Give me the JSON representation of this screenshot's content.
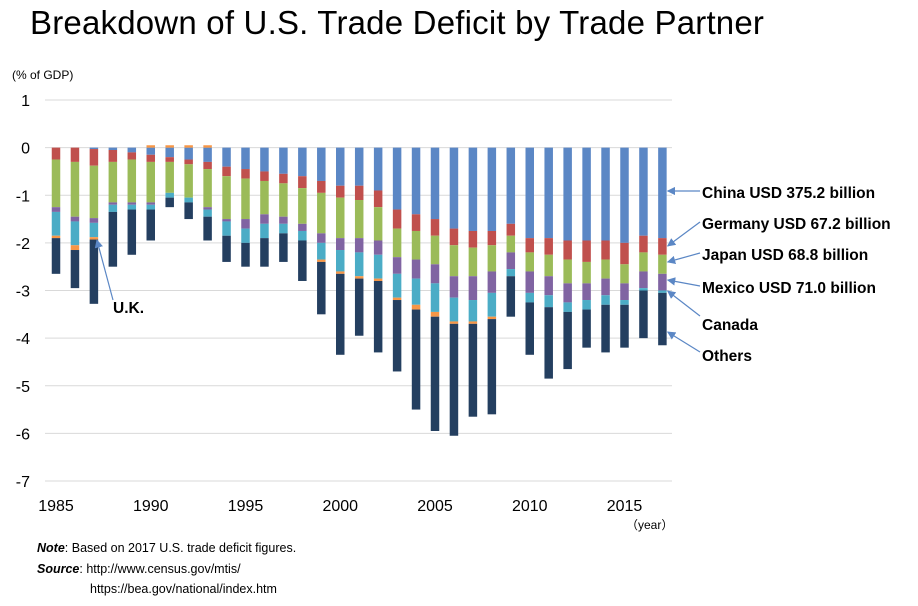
{
  "title": "Breakdown of U.S. Trade Deficit by Trade Partner",
  "unit_label": "(% of GDP)",
  "year_label": "（year）",
  "notes": {
    "note_label": "Note",
    "note_text": ": Based on 2017 U.S. trade deficit figures.",
    "source_label": "Source",
    "source_text": ": http://www.census.gov/mtis/",
    "source_text2": "https://bea.gov/national/index.htm"
  },
  "colors": {
    "China": "#5b87c5",
    "Germany": "#c0504d",
    "Japan": "#9bbb59",
    "Mexico": "#8064a2",
    "Canada": "#4bacc6",
    "UK": "#f79646",
    "Others": "#243f60",
    "arrow": "#5b87c5",
    "grid": "#d9d9d9"
  },
  "chart_data": {
    "type": "bar",
    "stacked": true,
    "x": [
      1985,
      1986,
      1987,
      1988,
      1989,
      1990,
      1991,
      1992,
      1993,
      1994,
      1995,
      1996,
      1997,
      1998,
      1999,
      2000,
      2001,
      2002,
      2003,
      2004,
      2005,
      2006,
      2007,
      2008,
      2009,
      2010,
      2011,
      2012,
      2013,
      2014,
      2015,
      2016,
      2017
    ],
    "xticks": [
      1985,
      1990,
      1995,
      2000,
      2005,
      2010,
      2015
    ],
    "yticks": [
      1,
      0,
      -1,
      -2,
      -3,
      -4,
      -5,
      -6,
      -7
    ],
    "ylim": [
      -7,
      1
    ],
    "series": [
      {
        "name": "China",
        "values": [
          0,
          0,
          -0.03,
          -0.05,
          -0.1,
          -0.15,
          -0.2,
          -0.25,
          -0.3,
          -0.4,
          -0.45,
          -0.5,
          -0.55,
          -0.6,
          -0.7,
          -0.8,
          -0.8,
          -0.9,
          -1.3,
          -1.4,
          -1.5,
          -1.7,
          -1.75,
          -1.75,
          -1.6,
          -1.9,
          -1.9,
          -1.95,
          -1.95,
          -1.95,
          -2.0,
          -1.85,
          -1.9
        ]
      },
      {
        "name": "Germany",
        "values": [
          -0.25,
          -0.3,
          -0.35,
          -0.25,
          -0.15,
          -0.15,
          -0.1,
          -0.1,
          -0.15,
          -0.2,
          -0.2,
          -0.2,
          -0.2,
          -0.25,
          -0.25,
          -0.25,
          -0.3,
          -0.35,
          -0.4,
          -0.35,
          -0.35,
          -0.35,
          -0.35,
          -0.3,
          -0.25,
          -0.3,
          -0.35,
          -0.4,
          -0.45,
          -0.4,
          -0.45,
          -0.35,
          -0.35
        ]
      },
      {
        "name": "Japan",
        "values": [
          -1.0,
          -1.15,
          -1.1,
          -0.85,
          -0.9,
          -0.85,
          -0.65,
          -0.7,
          -0.8,
          -0.9,
          -0.85,
          -0.7,
          -0.7,
          -0.75,
          -0.85,
          -0.85,
          -0.8,
          -0.7,
          -0.6,
          -0.6,
          -0.6,
          -0.65,
          -0.6,
          -0.55,
          -0.35,
          -0.4,
          -0.45,
          -0.5,
          -0.45,
          -0.4,
          -0.4,
          -0.4,
          -0.4
        ]
      },
      {
        "name": "Mexico",
        "values": [
          -0.1,
          -0.1,
          -0.1,
          -0.05,
          -0.05,
          -0.05,
          0,
          0,
          -0.05,
          -0.05,
          -0.2,
          -0.2,
          -0.15,
          -0.15,
          -0.2,
          -0.25,
          -0.3,
          -0.3,
          -0.35,
          -0.4,
          -0.4,
          -0.45,
          -0.5,
          -0.45,
          -0.35,
          -0.45,
          -0.4,
          -0.4,
          -0.35,
          -0.35,
          -0.35,
          -0.35,
          -0.35
        ]
      },
      {
        "name": "Canada",
        "values": [
          -0.5,
          -0.5,
          -0.3,
          -0.15,
          -0.1,
          -0.1,
          -0.1,
          -0.1,
          -0.15,
          -0.3,
          -0.3,
          -0.3,
          -0.2,
          -0.2,
          -0.35,
          -0.45,
          -0.5,
          -0.5,
          -0.5,
          -0.55,
          -0.6,
          -0.5,
          -0.45,
          -0.5,
          -0.15,
          -0.2,
          -0.25,
          -0.2,
          -0.2,
          -0.2,
          -0.1,
          -0.05,
          -0.05
        ]
      },
      {
        "name": "UK",
        "values": [
          -0.05,
          -0.1,
          -0.05,
          0,
          0,
          0.05,
          0.05,
          0.05,
          0.05,
          0,
          0,
          0,
          0,
          0,
          -0.05,
          -0.05,
          -0.05,
          -0.05,
          -0.05,
          -0.1,
          -0.1,
          -0.05,
          -0.05,
          -0.05,
          0,
          0,
          0,
          0,
          0,
          0,
          0,
          0,
          0
        ]
      },
      {
        "name": "Others",
        "values": [
          -0.75,
          -0.8,
          -1.35,
          -1.15,
          -0.95,
          -0.65,
          -0.2,
          -0.35,
          -0.5,
          -0.55,
          -0.5,
          -0.6,
          -0.6,
          -0.85,
          -1.1,
          -1.7,
          -1.2,
          -1.5,
          -1.5,
          -2.1,
          -2.4,
          -2.35,
          -1.95,
          -2.0,
          -0.85,
          -1.1,
          -1.5,
          -1.2,
          -0.8,
          -1.0,
          -0.9,
          -1.0,
          -1.1
        ]
      }
    ],
    "annotations": [
      {
        "label": "China USD 375.2 billion",
        "series": "China"
      },
      {
        "label": "Germany USD 67.2 billion",
        "series": "Germany"
      },
      {
        "label": "Japan USD 68.8 billion",
        "series": "Japan"
      },
      {
        "label": "Mexico USD 71.0 billion",
        "series": "Mexico"
      },
      {
        "label": "Canada",
        "series": "Canada"
      },
      {
        "label": "Others",
        "series": "Others"
      },
      {
        "label": "U.K.",
        "series": "UK",
        "year": 1987
      }
    ]
  }
}
